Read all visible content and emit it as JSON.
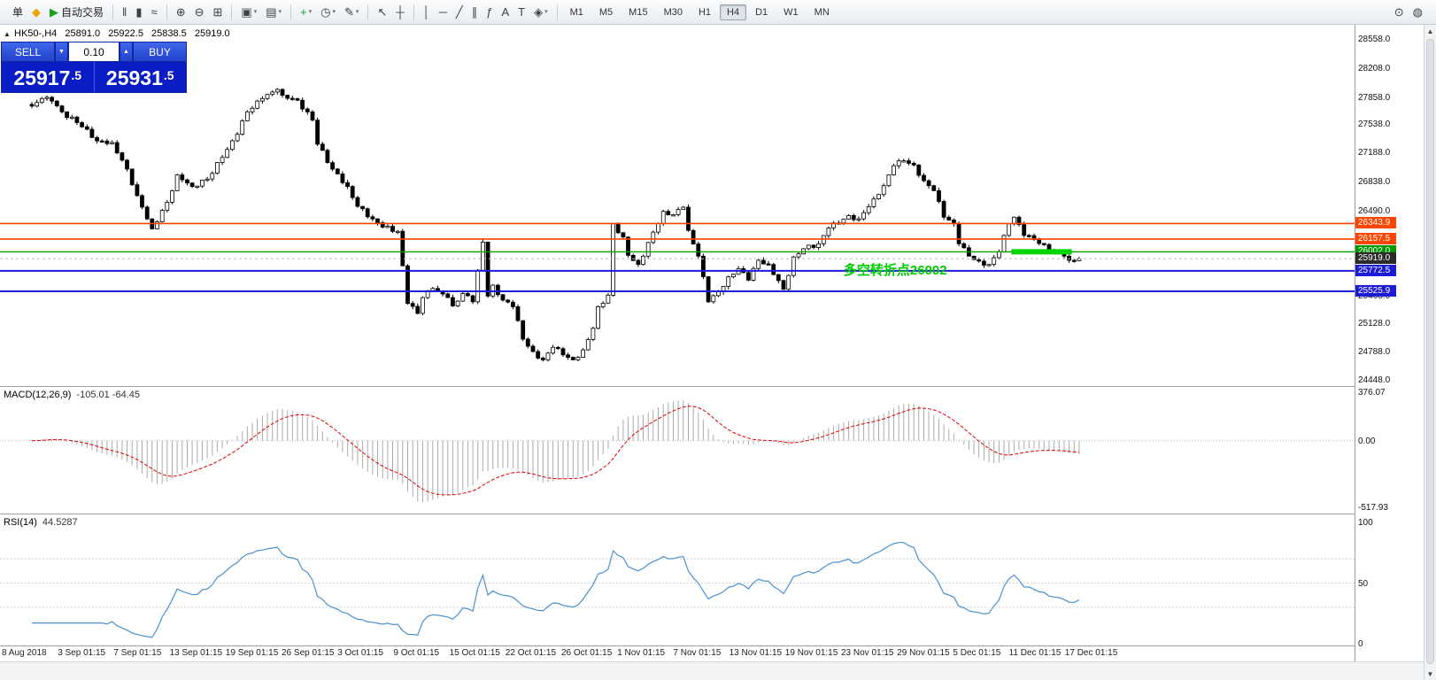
{
  "toolbar": {
    "items": [
      {
        "name": "new-order-button",
        "label": "单"
      },
      {
        "name": "chart-window-icon",
        "glyph": "◆",
        "glyph_color": "#e8a400"
      },
      {
        "name": "autotrading-button",
        "glyph": "▶",
        "glyph_color": "#18a018",
        "label": "自动交易"
      },
      {
        "type": "sep"
      },
      {
        "name": "bars-chart-icon",
        "glyph": "‖"
      },
      {
        "name": "candlestick-chart-icon",
        "glyph": "▮"
      },
      {
        "name": "line-chart-icon",
        "glyph": "≈"
      },
      {
        "type": "sep"
      },
      {
        "name": "zoom-in-icon",
        "glyph": "⊕"
      },
      {
        "name": "zoom-out-icon",
        "glyph": "⊖"
      },
      {
        "name": "grid-icon",
        "glyph": "⊞"
      },
      {
        "type": "sep"
      },
      {
        "name": "new-chart-icon",
        "glyph": "▣",
        "caret": true
      },
      {
        "name": "chart-profile-icon",
        "glyph": "▤",
        "caret": true
      },
      {
        "type": "sep"
      },
      {
        "name": "add-indicator-icon",
        "glyph": "+",
        "glyph_color": "#18a018",
        "caret": true
      },
      {
        "name": "period-clock-icon",
        "glyph": "◷",
        "caret": true
      },
      {
        "name": "template-icon",
        "glyph": "✎",
        "caret": true
      },
      {
        "type": "sep"
      },
      {
        "name": "cursor-icon",
        "glyph": "↖"
      },
      {
        "name": "crosshair-icon",
        "glyph": "┼"
      },
      {
        "type": "sep"
      },
      {
        "name": "vertical-line-icon",
        "glyph": "│"
      },
      {
        "name": "horizontal-line-icon",
        "glyph": "─"
      },
      {
        "name": "trendline-icon",
        "glyph": "╱"
      },
      {
        "name": "channel-icon",
        "glyph": "∥"
      },
      {
        "name": "fibonacci-icon",
        "glyph": "ƒ"
      },
      {
        "name": "text-icon",
        "glyph": "A"
      },
      {
        "name": "text-label-icon",
        "glyph": "T"
      },
      {
        "name": "shapes-icon",
        "glyph": "◈",
        "caret": true
      }
    ],
    "timeframes": [
      "M1",
      "M5",
      "M15",
      "M30",
      "H1",
      "H4",
      "D1",
      "W1",
      "MN"
    ],
    "active_timeframe": "H4",
    "right_icons": [
      {
        "name": "search-icon",
        "glyph": "⊙"
      },
      {
        "name": "community-globe-icon",
        "glyph": "◍"
      }
    ]
  },
  "chart_info": {
    "symbol_period": "HK50-,H4",
    "open": "25891.0",
    "high": "25922.5",
    "low": "25838.5",
    "close": "25919.0"
  },
  "trade_panel": {
    "sell_label": "SELL",
    "buy_label": "BUY",
    "volume": "0.10",
    "sell_price": "25917",
    "sell_fraction": ".5",
    "buy_price": "25931",
    "buy_fraction": ".5"
  },
  "indicators": {
    "macd": {
      "label": "MACD(12,26,9)",
      "values_text": "-105.01 -64.45",
      "params": [
        12,
        26,
        9
      ],
      "axis": {
        "max": 376.07,
        "mid": 0.0,
        "min": -517.93
      },
      "axis_labels": [
        "376.07",
        "0.00",
        "-517.93"
      ]
    },
    "rsi": {
      "label": "RSI(14)",
      "value_text": "44.5287",
      "period": 14,
      "axis": {
        "max": 100,
        "mid": 50,
        "min": 0
      },
      "axis_labels": [
        "100",
        "50",
        "0"
      ],
      "levels": [
        70,
        50,
        30
      ]
    }
  },
  "chart_data": {
    "type": "candlestick",
    "symbol": "HK50-",
    "timeframe": "H4",
    "ohlc_current": {
      "open": 25891.0,
      "high": 25922.5,
      "low": 25838.5,
      "close": 25919.0
    },
    "y_axis": {
      "min": 24448.0,
      "max": 28558.0,
      "ticks": [
        "28558.0",
        "28208.0",
        "27858.0",
        "27538.0",
        "27188.0",
        "26838.0",
        "26490.0",
        "26140.0",
        "25790.0",
        "25468.0",
        "25128.0",
        "24788.0",
        "24448.0"
      ]
    },
    "x_axis": {
      "labels": [
        "8 Aug 2018",
        "3 Sep 01:15",
        "7 Sep 01:15",
        "13 Sep 01:15",
        "19 Sep 01:15",
        "26 Sep 01:15",
        "3 Oct 01:15",
        "9 Oct 01:15",
        "15 Oct 01:15",
        "22 Oct 01:15",
        "26 Oct 01:15",
        "1 Nov 01:15",
        "7 Nov 01:15",
        "13 Nov 01:15",
        "19 Nov 01:15",
        "23 Nov 01:15",
        "29 Nov 01:15",
        "5 Dec 01:15",
        "11 Dec 01:15",
        "17 Dec 01:15"
      ]
    },
    "horizontal_lines": [
      {
        "price": 26343.9,
        "label": "26343.9",
        "color": "#ff4500",
        "thickness": 1.6
      },
      {
        "price": 26157.5,
        "label": "26157.5",
        "color": "#ff4500",
        "thickness": 1.6
      },
      {
        "price": 26002.0,
        "label": "26002.0",
        "color": "#009900",
        "thickness": 1.4
      },
      {
        "price": 25772.5,
        "label": "25772.5",
        "color": "#1c1cd8",
        "thickness": 2
      },
      {
        "price": 25525.9,
        "label": "25525.9",
        "color": "#1c1cd8",
        "thickness": 2
      }
    ],
    "current_price_marker": {
      "price": 25919.0,
      "label": "25919.0",
      "color": "#2a2a2a"
    },
    "trend_highlight": {
      "price": 26002.0,
      "from_index": 196,
      "to_index": 207,
      "color": "#00d500",
      "thickness": 6
    },
    "annotation": {
      "text": "多空转折点26002",
      "color": "#00cc00",
      "x_index": 162,
      "price": 25800
    },
    "candles": {
      "count": 210,
      "anchors": [
        [
          0,
          27760
        ],
        [
          2,
          27850
        ],
        [
          4,
          27820
        ],
        [
          6,
          27690
        ],
        [
          9,
          27560
        ],
        [
          11,
          27480
        ],
        [
          13,
          27340
        ],
        [
          16,
          27320
        ],
        [
          19,
          27000
        ],
        [
          21,
          26680
        ],
        [
          24,
          26280
        ],
        [
          27,
          26600
        ],
        [
          29,
          26930
        ],
        [
          32,
          26790
        ],
        [
          35,
          26880
        ],
        [
          38,
          27140
        ],
        [
          41,
          27420
        ],
        [
          43,
          27690
        ],
        [
          46,
          27850
        ],
        [
          49,
          27960
        ],
        [
          50,
          27890
        ],
        [
          53,
          27830
        ],
        [
          56,
          27590
        ],
        [
          57,
          27300
        ],
        [
          60,
          27000
        ],
        [
          63,
          26790
        ],
        [
          65,
          26550
        ],
        [
          68,
          26400
        ],
        [
          70,
          26300
        ],
        [
          73,
          26250
        ],
        [
          75,
          25380
        ],
        [
          77,
          25260
        ],
        [
          78,
          25450
        ],
        [
          80,
          25560
        ],
        [
          83,
          25450
        ],
        [
          84,
          25350
        ],
        [
          86,
          25500
        ],
        [
          88,
          25400
        ],
        [
          90,
          26120
        ],
        [
          91,
          25470
        ],
        [
          92,
          25600
        ],
        [
          94,
          25420
        ],
        [
          96,
          25340
        ],
        [
          98,
          24950
        ],
        [
          100,
          24800
        ],
        [
          102,
          24700
        ],
        [
          104,
          24850
        ],
        [
          106,
          24760
        ],
        [
          108,
          24700
        ],
        [
          110,
          24820
        ],
        [
          112,
          25080
        ],
        [
          113,
          25340
        ],
        [
          115,
          25480
        ],
        [
          116,
          26340
        ],
        [
          118,
          26180
        ],
        [
          119,
          25960
        ],
        [
          121,
          25850
        ],
        [
          122,
          25950
        ],
        [
          124,
          26240
        ],
        [
          126,
          26490
        ],
        [
          128,
          26450
        ],
        [
          130,
          26540
        ],
        [
          131,
          26260
        ],
        [
          133,
          25950
        ],
        [
          135,
          25400
        ],
        [
          137,
          25520
        ],
        [
          139,
          25700
        ],
        [
          141,
          25800
        ],
        [
          143,
          25660
        ],
        [
          145,
          25900
        ],
        [
          147,
          25850
        ],
        [
          150,
          25550
        ],
        [
          152,
          25940
        ],
        [
          154,
          26040
        ],
        [
          157,
          26100
        ],
        [
          159,
          26290
        ],
        [
          161,
          26350
        ],
        [
          163,
          26440
        ],
        [
          165,
          26400
        ],
        [
          168,
          26640
        ],
        [
          170,
          26800
        ],
        [
          172,
          27040
        ],
        [
          174,
          27100
        ],
        [
          176,
          27050
        ],
        [
          178,
          26860
        ],
        [
          180,
          26740
        ],
        [
          182,
          26420
        ],
        [
          184,
          26340
        ],
        [
          185,
          26100
        ],
        [
          187,
          25950
        ],
        [
          189,
          25890
        ],
        [
          191,
          25850
        ],
        [
          193,
          26000
        ],
        [
          195,
          26340
        ],
        [
          196,
          26420
        ],
        [
          198,
          26200
        ],
        [
          200,
          26150
        ],
        [
          202,
          26090
        ],
        [
          204,
          26000
        ],
        [
          206,
          25950
        ],
        [
          207,
          25900
        ],
        [
          209,
          25919
        ]
      ]
    }
  }
}
